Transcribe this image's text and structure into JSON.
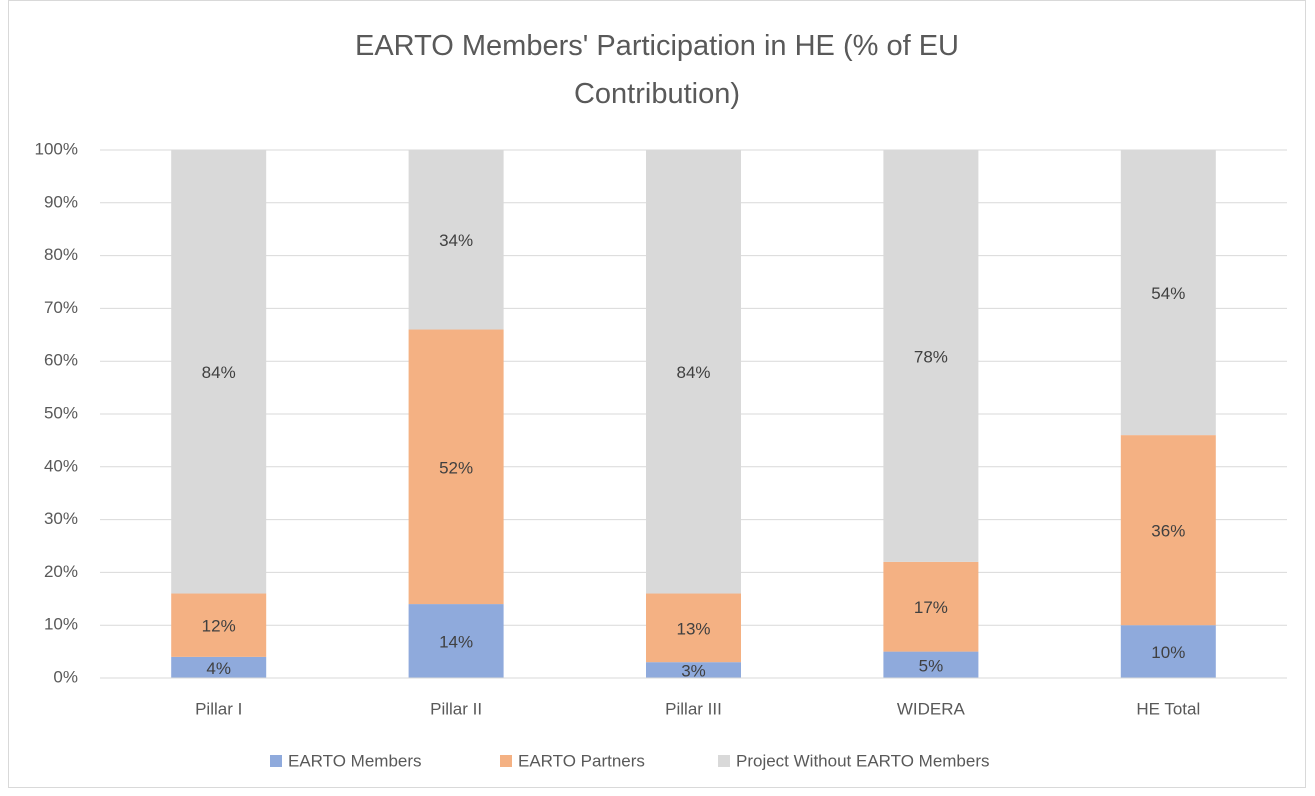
{
  "chart_data": {
    "type": "stacked_bar",
    "title": "EARTO Members' Participation in HE (% of EU Contribution)",
    "categories": [
      "Pillar I",
      "Pillar II",
      "Pillar III",
      "WIDERA",
      "HE Total"
    ],
    "series": [
      {
        "name": "EARTO Members",
        "color": "#8faadc",
        "values": [
          4,
          14,
          3,
          5,
          10
        ],
        "value_labels": [
          "4%",
          "14%",
          "3%",
          "5%",
          "10%"
        ]
      },
      {
        "name": "EARTO Partners",
        "color": "#f4b183",
        "values": [
          12,
          52,
          13,
          17,
          36
        ],
        "value_labels": [
          "12%",
          "52%",
          "13%",
          "17%",
          "36%"
        ]
      },
      {
        "name": "Project Without EARTO Members",
        "color": "#d9d9d9",
        "values": [
          84,
          34,
          84,
          78,
          54
        ],
        "value_labels": [
          "84%",
          "34%",
          "84%",
          "78%",
          "54%"
        ]
      }
    ],
    "ylim": [
      0,
      100
    ],
    "yticks": [
      {
        "value": 0,
        "label": "0%"
      },
      {
        "value": 10,
        "label": "10%"
      },
      {
        "value": 20,
        "label": "20%"
      },
      {
        "value": 30,
        "label": "30%"
      },
      {
        "value": 40,
        "label": "40%"
      },
      {
        "value": 50,
        "label": "50%"
      },
      {
        "value": 60,
        "label": "60%"
      },
      {
        "value": 70,
        "label": "70%"
      },
      {
        "value": 80,
        "label": "80%"
      },
      {
        "value": 90,
        "label": "90%"
      },
      {
        "value": 100,
        "label": "100%"
      }
    ],
    "grid": true,
    "legend": "bottom"
  }
}
